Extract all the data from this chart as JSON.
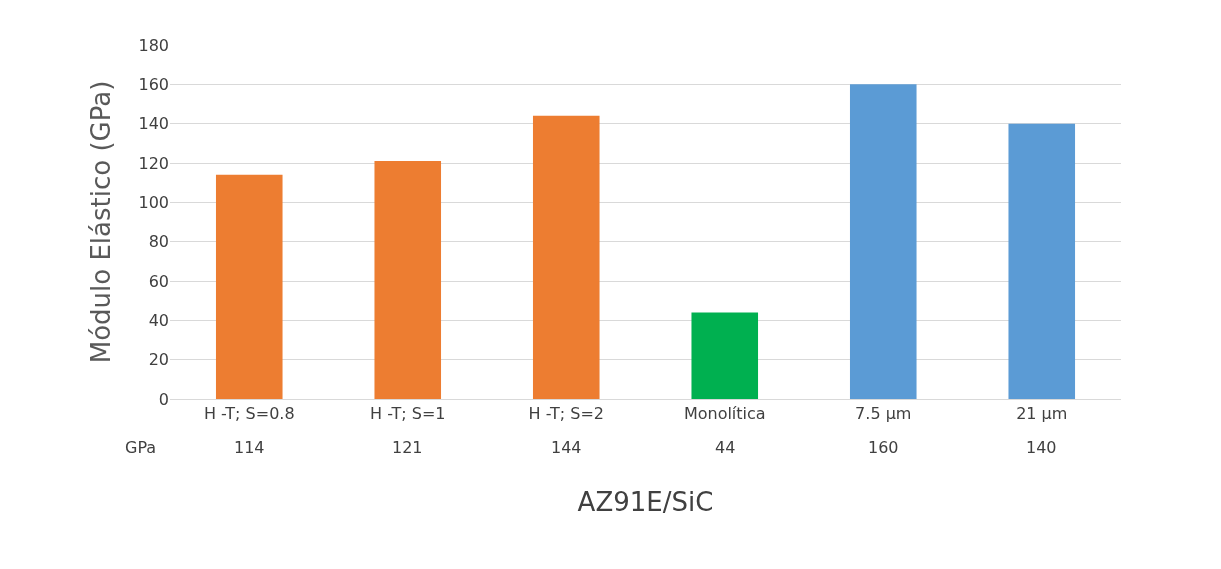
{
  "chart_data": {
    "type": "bar",
    "categories": [
      "H -T; S=0.8",
      "H -T; S=1",
      "H -T; S=2",
      "Monolítica",
      "7.5 µm",
      "21 µm"
    ],
    "series": [
      {
        "name": "GPa",
        "colors": [
          "#ed7d31",
          "#ed7d31",
          "#ed7d31",
          "#00b050",
          "#5b9bd5",
          "#5b9bd5"
        ],
        "values": [
          114,
          121,
          144,
          44,
          160,
          140
        ]
      }
    ],
    "data_labels": true,
    "ylabel": "Módulo Elástico (GPa)",
    "xlabel": "AZ91E/SiC",
    "ylim": [
      0,
      180
    ],
    "yticks": [
      0,
      20,
      40,
      60,
      80,
      100,
      120,
      140,
      160,
      180
    ],
    "grid": "y",
    "legend": false
  }
}
